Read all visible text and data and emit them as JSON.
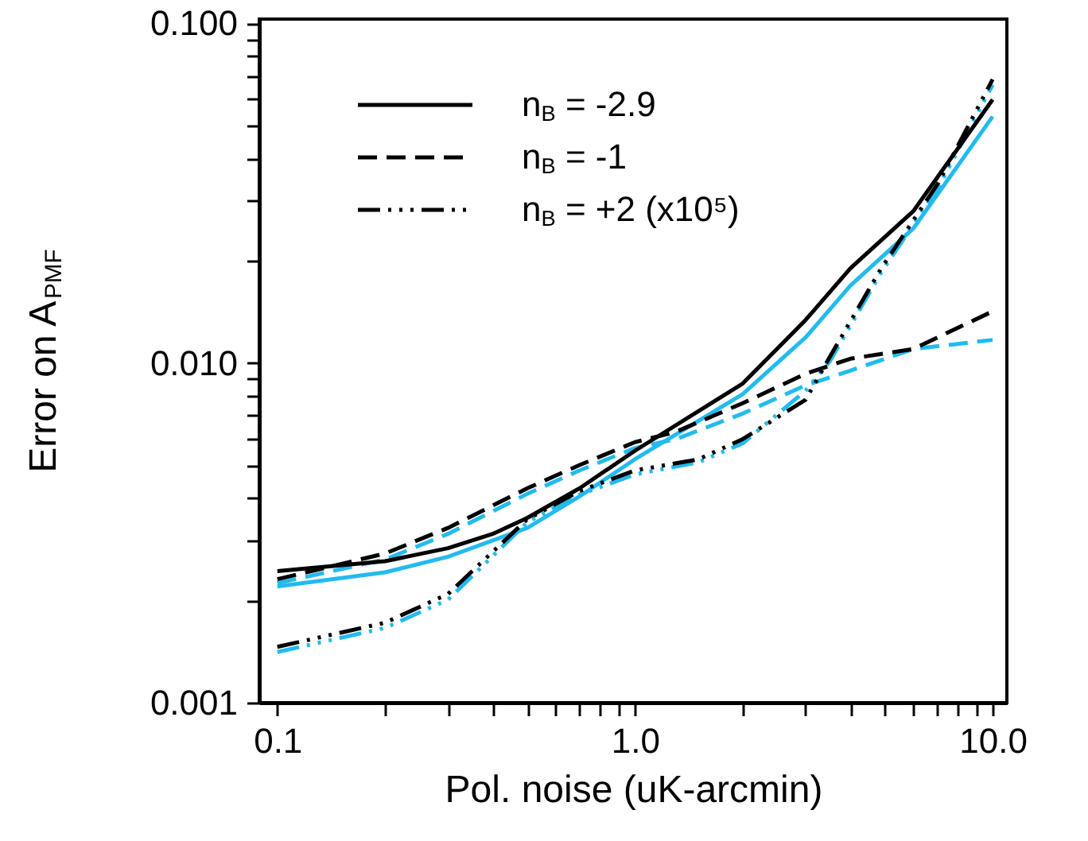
{
  "chart_data": {
    "type": "line",
    "xlabel": "Pol. noise (uK-arcmin)",
    "ylabel": "Error on A$_{PMF}$",
    "log": "xy",
    "grid": false,
    "legend": "top left",
    "xlim": [
      0.089,
      10.96
    ],
    "ylim": [
      0.001,
      0.103
    ],
    "xticks": [
      {
        "value": 0.1,
        "label": "0.1"
      },
      {
        "value": 0.2,
        "label": null
      },
      {
        "value": 0.3,
        "label": null
      },
      {
        "value": 0.4,
        "label": null
      },
      {
        "value": 0.5,
        "label": null
      },
      {
        "value": 0.6,
        "label": null
      },
      {
        "value": 0.7,
        "label": null
      },
      {
        "value": 0.8,
        "label": null
      },
      {
        "value": 0.9,
        "label": null
      },
      {
        "value": 1,
        "label": "1.0"
      },
      {
        "value": 2,
        "label": null
      },
      {
        "value": 3,
        "label": null
      },
      {
        "value": 4,
        "label": null
      },
      {
        "value": 5,
        "label": null
      },
      {
        "value": 6,
        "label": null
      },
      {
        "value": 7,
        "label": null
      },
      {
        "value": 8,
        "label": null
      },
      {
        "value": 9,
        "label": null
      },
      {
        "value": 10,
        "label": "10.0"
      }
    ],
    "yticks": [
      {
        "value": 0.001,
        "label": "0.001"
      },
      {
        "value": 0.002,
        "label": null
      },
      {
        "value": 0.003,
        "label": null
      },
      {
        "value": 0.004,
        "label": null
      },
      {
        "value": 0.005,
        "label": null
      },
      {
        "value": 0.006,
        "label": null
      },
      {
        "value": 0.007,
        "label": null
      },
      {
        "value": 0.008,
        "label": null
      },
      {
        "value": 0.009,
        "label": null
      },
      {
        "value": 0.01,
        "label": "0.010"
      },
      {
        "value": 0.02,
        "label": null
      },
      {
        "value": 0.03,
        "label": null
      },
      {
        "value": 0.04,
        "label": null
      },
      {
        "value": 0.05,
        "label": null
      },
      {
        "value": 0.06,
        "label": null
      },
      {
        "value": 0.07,
        "label": null
      },
      {
        "value": 0.08,
        "label": null
      },
      {
        "value": 0.09,
        "label": null
      },
      {
        "value": 0.1,
        "label": "0.100"
      }
    ],
    "series": [
      {
        "name": "n$_{B}$ = -2.9",
        "color": "#000000",
        "line_style": "solid",
        "x": [
          0.1,
          0.2,
          0.3,
          0.4,
          0.5,
          0.7,
          1,
          2,
          3,
          4,
          6,
          10
        ],
        "values": [
          0.00244,
          0.00261,
          0.00285,
          0.00314,
          0.0035,
          0.00428,
          0.00552,
          0.0087,
          0.0134,
          0.019,
          0.028,
          0.0597
        ]
      },
      {
        "name": "n$_{B}$ = -1",
        "color": "#000000",
        "line_style": "dashed",
        "x": [
          0.1,
          0.2,
          0.3,
          0.5,
          0.7,
          1,
          1.3,
          2,
          3,
          4,
          6,
          10
        ],
        "values": [
          0.00231,
          0.00275,
          0.00327,
          0.00428,
          0.00501,
          0.00585,
          0.00627,
          0.00762,
          0.0093,
          0.0103,
          0.011,
          0.0142
        ]
      },
      {
        "name": "n$_{B}$ = +2 (x10⁵)",
        "color": "#000000",
        "line_style": "dotted",
        "x": [
          0.1,
          0.2,
          0.3,
          0.5,
          0.7,
          1,
          1.5,
          2,
          3,
          3.5,
          4.88,
          7.06,
          10
        ],
        "values": [
          0.00146,
          0.00172,
          0.00209,
          0.00347,
          0.0042,
          0.00483,
          0.0052,
          0.00597,
          0.0078,
          0.0104,
          0.019,
          0.034,
          0.0684
        ]
      },
      {
        "color": "#22bbee",
        "line_style": "solid",
        "x": [
          0.1,
          0.2,
          0.3,
          0.5,
          0.7,
          1,
          2,
          3,
          4,
          6,
          10
        ],
        "values": [
          0.0022,
          0.00242,
          0.00269,
          0.00327,
          0.00405,
          0.00521,
          0.0081,
          0.0119,
          0.0169,
          0.0249,
          0.0532
        ]
      },
      {
        "color": "#22bbee",
        "line_style": "dashed",
        "x": [
          0.1,
          0.2,
          0.3,
          0.5,
          0.7,
          1,
          1.3,
          2,
          3,
          4,
          6,
          10
        ],
        "values": [
          0.00225,
          0.00264,
          0.00314,
          0.00412,
          0.00483,
          0.00562,
          0.00597,
          0.0071,
          0.0086,
          0.0095,
          0.011,
          0.0117
        ]
      },
      {
        "color": "#22bbee",
        "line_style": "dotted",
        "x": [
          0.1,
          0.2,
          0.3,
          0.5,
          0.7,
          1,
          1.5,
          2,
          3,
          3.5,
          4.88,
          7.06,
          10
        ],
        "values": [
          0.00141,
          0.00166,
          0.00201,
          0.0034,
          0.0041,
          0.0047,
          0.0051,
          0.0058,
          0.0083,
          0.0101,
          0.0185,
          0.033,
          0.066
        ]
      }
    ]
  }
}
